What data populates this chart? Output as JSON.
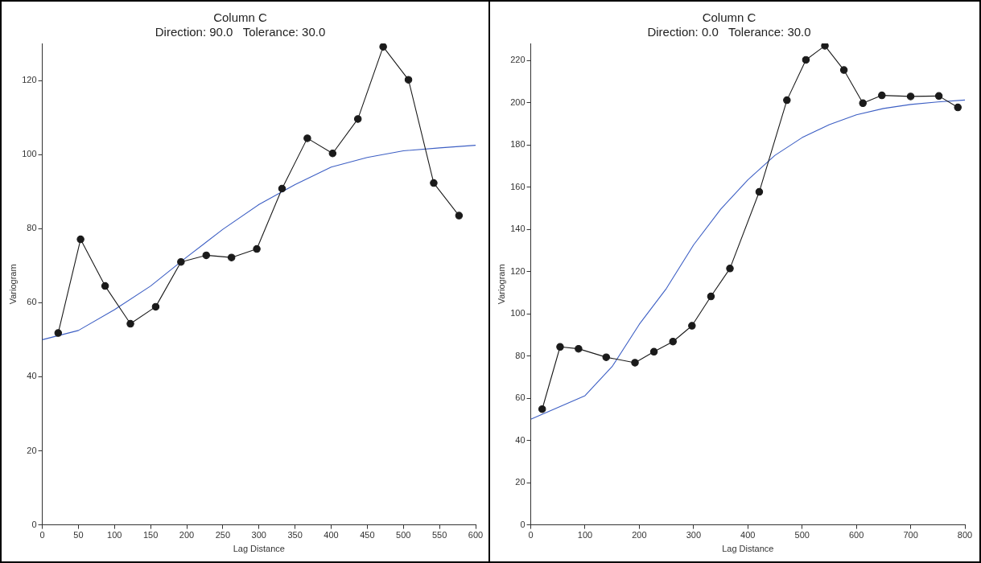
{
  "chart_data": [
    {
      "type": "line",
      "title": "Column C",
      "subtitle": "Direction: 90.0   Tolerance: 30.0",
      "xlabel": "Lag Distance",
      "ylabel": "Variogram",
      "xlim": [
        0,
        600
      ],
      "xticks": [
        0,
        50,
        100,
        150,
        200,
        250,
        300,
        350,
        400,
        450,
        500,
        550,
        600
      ],
      "ylim": [
        0,
        130
      ],
      "yticks": [
        0,
        20,
        40,
        60,
        80,
        100,
        120
      ],
      "grid": false,
      "legend": false,
      "series": [
        {
          "color": "#1a1a1a",
          "marker": "circle",
          "x": [
            22,
            53,
            87,
            122,
            157,
            192,
            227,
            262,
            297,
            332,
            367,
            402,
            437,
            472,
            507,
            542,
            577
          ],
          "values": [
            51.8,
            77.1,
            64.5,
            54.3,
            58.9,
            71.0,
            72.8,
            72.2,
            74.5,
            90.8,
            104.4,
            100.3,
            109.6,
            129.1,
            120.2,
            92.3,
            83.5
          ]
        },
        {
          "color": "#3d5fc4",
          "marker": "none",
          "x": [
            0,
            50,
            100,
            150,
            200,
            250,
            300,
            350,
            400,
            450,
            500,
            550,
            600
          ],
          "values": [
            50,
            52.5,
            58.1,
            64.5,
            72.3,
            79.8,
            86.5,
            91.9,
            96.6,
            99.2,
            101,
            101.8,
            102.5
          ]
        }
      ]
    },
    {
      "type": "line",
      "title": "Column C",
      "subtitle": "Direction: 0.0   Tolerance: 30.0",
      "xlabel": "Lag Distance",
      "ylabel": "Variogram",
      "xlim": [
        0,
        800
      ],
      "xticks": [
        0,
        100,
        200,
        300,
        400,
        500,
        600,
        700,
        800
      ],
      "ylim": [
        0,
        228
      ],
      "yticks": [
        0,
        20,
        40,
        60,
        80,
        100,
        120,
        140,
        160,
        180,
        200,
        220
      ],
      "grid": false,
      "legend": false,
      "series": [
        {
          "color": "#1a1a1a",
          "marker": "circle",
          "x": [
            21,
            54,
            88,
            139,
            192,
            227,
            262,
            297,
            332,
            367,
            421,
            472,
            507,
            542,
            577,
            612,
            647,
            700,
            752,
            787
          ],
          "values": [
            54.8,
            84.3,
            83.4,
            79.4,
            76.8,
            82,
            86.8,
            94.3,
            108.2,
            121.4,
            157.7,
            201.1,
            220.2,
            226.9,
            215.4,
            199.7,
            203.4,
            202.9,
            203.1,
            197.7
          ]
        },
        {
          "color": "#3d5fc4",
          "marker": "none",
          "x": [
            0,
            100,
            150,
            200,
            250,
            300,
            350,
            400,
            450,
            500,
            550,
            600,
            650,
            700,
            750,
            800
          ],
          "values": [
            50,
            61.2,
            75,
            95,
            112,
            132.6,
            149.5,
            163.4,
            175,
            183.4,
            189.5,
            194.2,
            197.2,
            199.1,
            200.3,
            201.2
          ]
        }
      ]
    }
  ]
}
